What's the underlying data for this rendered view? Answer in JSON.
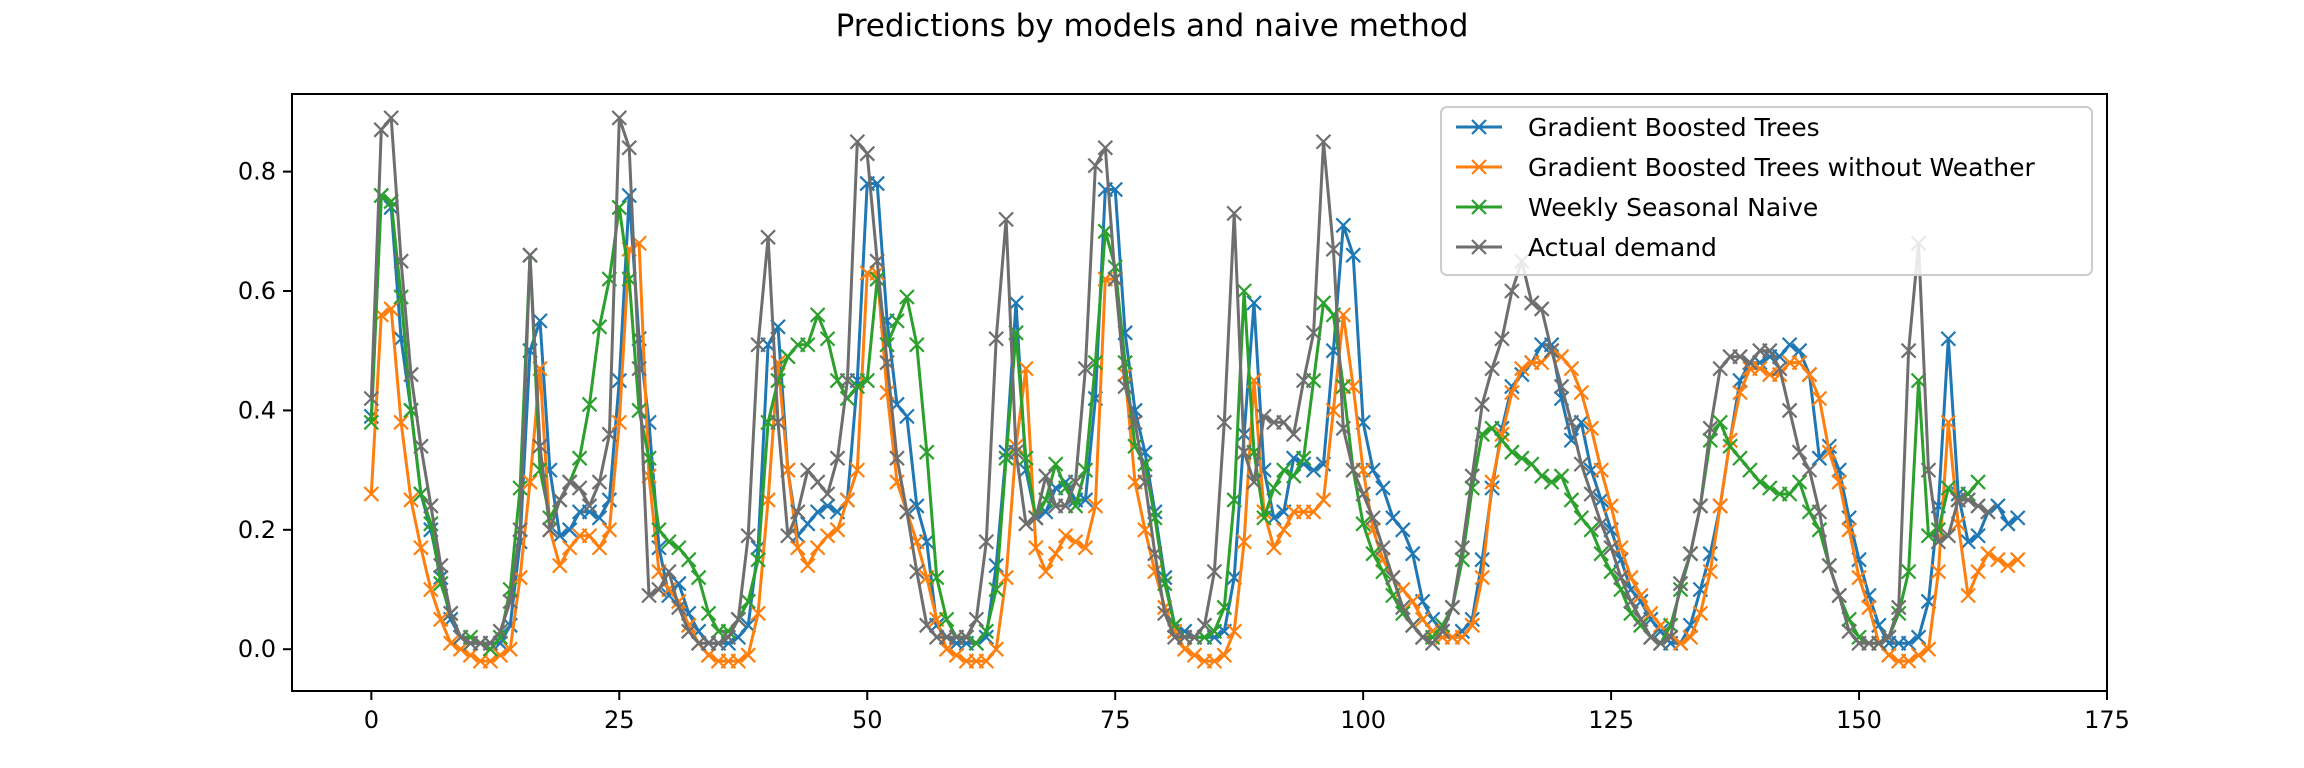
{
  "chart_data": {
    "type": "line",
    "title": "Predictions by models and naive method",
    "xlabel": "",
    "ylabel": "",
    "xlim": [
      -8,
      175
    ],
    "ylim": [
      -0.07,
      0.93
    ],
    "xticks": [
      0,
      25,
      50,
      75,
      100,
      125,
      150,
      175
    ],
    "xtick_labels": [
      "0",
      "25",
      "50",
      "75",
      "100",
      "125",
      "150",
      "175"
    ],
    "yticks": [
      0.0,
      0.2,
      0.4,
      0.6,
      0.8
    ],
    "ytick_labels": [
      "0.0",
      "0.2",
      "0.4",
      "0.6",
      "0.8"
    ],
    "legend_position": "top-right",
    "grid": false,
    "series": [
      {
        "name": "Gradient Boosted Trees",
        "color": "#1f77b4",
        "values": [
          0.39,
          0.76,
          0.74,
          0.52,
          0.4,
          0.26,
          0.2,
          0.12,
          0.05,
          0.02,
          0.01,
          0.01,
          0.01,
          0.01,
          0.04,
          0.18,
          0.5,
          0.55,
          0.3,
          0.19,
          0.2,
          0.23,
          0.23,
          0.22,
          0.25,
          0.45,
          0.76,
          0.52,
          0.38,
          0.17,
          0.09,
          0.11,
          0.06,
          0.03,
          0.01,
          0.01,
          0.01,
          0.02,
          0.04,
          0.17,
          0.51,
          0.54,
          0.3,
          0.19,
          0.21,
          0.23,
          0.24,
          0.23,
          0.25,
          0.45,
          0.78,
          0.78,
          0.55,
          0.41,
          0.39,
          0.24,
          0.18,
          0.04,
          0.02,
          0.01,
          0.01,
          0.01,
          0.02,
          0.14,
          0.33,
          0.58,
          0.3,
          0.22,
          0.23,
          0.27,
          0.28,
          0.25,
          0.25,
          0.42,
          0.77,
          0.77,
          0.53,
          0.4,
          0.33,
          0.23,
          0.12,
          0.04,
          0.03,
          0.02,
          0.02,
          0.02,
          0.03,
          0.12,
          0.36,
          0.58,
          0.3,
          0.22,
          0.23,
          0.32,
          0.31,
          0.3,
          0.31,
          0.5,
          0.71,
          0.66,
          0.38,
          0.3,
          0.27,
          0.22,
          0.2,
          0.16,
          0.08,
          0.05,
          0.03,
          0.02,
          0.03,
          0.05,
          0.15,
          0.27,
          0.37,
          0.44,
          0.46,
          0.48,
          0.51,
          0.51,
          0.42,
          0.35,
          0.38,
          0.3,
          0.25,
          0.2,
          0.15,
          0.1,
          0.08,
          0.05,
          0.03,
          0.01,
          0.01,
          0.04,
          0.1,
          0.16,
          0.24,
          0.35,
          0.45,
          0.48,
          0.48,
          0.49,
          0.49,
          0.51,
          0.5,
          0.46,
          0.32,
          0.34,
          0.3,
          0.22,
          0.15,
          0.09,
          0.04,
          0.01,
          0.01,
          0.01,
          0.02,
          0.08,
          0.24,
          0.52,
          0.26,
          0.18,
          0.19,
          0.23,
          0.24,
          0.21,
          0.22
        ]
      },
      {
        "name": "Gradient Boosted Trees without Weather",
        "color": "#ff7f0e",
        "values": [
          0.26,
          0.56,
          0.57,
          0.38,
          0.25,
          0.17,
          0.1,
          0.05,
          0.01,
          0.0,
          -0.01,
          -0.02,
          -0.02,
          -0.01,
          0.0,
          0.12,
          0.28,
          0.47,
          0.2,
          0.14,
          0.17,
          0.19,
          0.19,
          0.17,
          0.2,
          0.38,
          0.67,
          0.68,
          0.29,
          0.13,
          0.1,
          0.08,
          0.04,
          0.01,
          -0.01,
          -0.02,
          -0.02,
          -0.02,
          -0.01,
          0.06,
          0.25,
          0.48,
          0.3,
          0.17,
          0.14,
          0.17,
          0.19,
          0.2,
          0.25,
          0.3,
          0.63,
          0.63,
          0.43,
          0.28,
          0.23,
          0.18,
          0.12,
          0.05,
          0.0,
          -0.01,
          -0.02,
          -0.02,
          -0.02,
          0.0,
          0.12,
          0.34,
          0.47,
          0.17,
          0.13,
          0.16,
          0.19,
          0.18,
          0.17,
          0.24,
          0.62,
          0.62,
          0.46,
          0.28,
          0.2,
          0.13,
          0.07,
          0.03,
          0.0,
          -0.01,
          -0.02,
          -0.02,
          -0.01,
          0.03,
          0.18,
          0.45,
          0.23,
          0.17,
          0.2,
          0.23,
          0.23,
          0.23,
          0.25,
          0.4,
          0.56,
          0.44,
          0.3,
          0.2,
          0.15,
          0.12,
          0.1,
          0.08,
          0.05,
          0.03,
          0.02,
          0.02,
          0.02,
          0.04,
          0.12,
          0.28,
          0.36,
          0.43,
          0.47,
          0.48,
          0.48,
          0.5,
          0.49,
          0.47,
          0.43,
          0.37,
          0.3,
          0.24,
          0.17,
          0.12,
          0.09,
          0.06,
          0.04,
          0.02,
          0.01,
          0.02,
          0.06,
          0.13,
          0.24,
          0.35,
          0.43,
          0.47,
          0.47,
          0.46,
          0.46,
          0.48,
          0.48,
          0.46,
          0.42,
          0.33,
          0.28,
          0.2,
          0.12,
          0.07,
          0.01,
          -0.01,
          -0.02,
          -0.02,
          -0.01,
          0.0,
          0.13,
          0.38,
          0.21,
          0.09,
          0.13,
          0.16,
          0.15,
          0.14,
          0.15
        ]
      },
      {
        "name": "Weekly Seasonal Naive",
        "color": "#2ca02c",
        "values": [
          0.38,
          0.76,
          0.75,
          0.59,
          0.4,
          0.26,
          0.21,
          0.11,
          0.06,
          0.02,
          0.02,
          0.01,
          0.0,
          0.02,
          0.1,
          0.27,
          0.66,
          0.3,
          0.22,
          0.25,
          0.28,
          0.32,
          0.41,
          0.54,
          0.62,
          0.74,
          0.62,
          0.4,
          0.32,
          0.2,
          0.18,
          0.17,
          0.15,
          0.12,
          0.06,
          0.03,
          0.03,
          0.05,
          0.08,
          0.15,
          0.38,
          0.45,
          0.49,
          0.51,
          0.51,
          0.56,
          0.52,
          0.45,
          0.42,
          0.44,
          0.45,
          0.62,
          0.51,
          0.55,
          0.59,
          0.51,
          0.33,
          0.12,
          0.05,
          0.02,
          0.02,
          0.01,
          0.03,
          0.1,
          0.32,
          0.53,
          0.32,
          0.22,
          0.25,
          0.31,
          0.27,
          0.24,
          0.3,
          0.48,
          0.7,
          0.64,
          0.48,
          0.34,
          0.31,
          0.22,
          0.11,
          0.04,
          0.02,
          0.02,
          0.02,
          0.03,
          0.07,
          0.25,
          0.6,
          0.33,
          0.22,
          0.27,
          0.3,
          0.29,
          0.32,
          0.45,
          0.58,
          0.56,
          0.44,
          0.3,
          0.21,
          0.16,
          0.13,
          0.09,
          0.06,
          0.04,
          0.02,
          0.02,
          0.04,
          0.07,
          0.15,
          0.27,
          0.36,
          0.37,
          0.35,
          0.33,
          0.32,
          0.31,
          0.29,
          0.28,
          0.29,
          0.25,
          0.22,
          0.2,
          0.16,
          0.13,
          0.1,
          0.06,
          0.04,
          0.02,
          0.01,
          0.04,
          0.1,
          0.16,
          0.24,
          0.35,
          0.38,
          0.34,
          0.32,
          0.3,
          0.28,
          0.27,
          0.26,
          0.26,
          0.28,
          0.23,
          0.2,
          0.14,
          0.09,
          0.05,
          0.02,
          0.01,
          0.01,
          0.02,
          0.06,
          0.13,
          0.45,
          0.19,
          0.2,
          0.27,
          0.25,
          0.26,
          0.28
        ]
      },
      {
        "name": "Actual demand",
        "color": "#6e6e6e",
        "values": [
          0.42,
          0.87,
          0.89,
          0.65,
          0.46,
          0.34,
          0.24,
          0.14,
          0.06,
          0.02,
          0.01,
          0.01,
          0.01,
          0.03,
          0.08,
          0.2,
          0.66,
          0.34,
          0.2,
          0.25,
          0.28,
          0.27,
          0.24,
          0.28,
          0.36,
          0.89,
          0.84,
          0.47,
          0.09,
          0.1,
          0.13,
          0.07,
          0.03,
          0.01,
          0.01,
          0.01,
          0.02,
          0.05,
          0.19,
          0.51,
          0.69,
          0.38,
          0.19,
          0.23,
          0.3,
          0.28,
          0.26,
          0.32,
          0.45,
          0.85,
          0.83,
          0.65,
          0.48,
          0.32,
          0.23,
          0.13,
          0.04,
          0.02,
          0.02,
          0.02,
          0.02,
          0.05,
          0.18,
          0.52,
          0.72,
          0.33,
          0.21,
          0.22,
          0.29,
          0.24,
          0.24,
          0.28,
          0.47,
          0.81,
          0.84,
          0.62,
          0.44,
          0.38,
          0.28,
          0.16,
          0.06,
          0.02,
          0.02,
          0.02,
          0.04,
          0.13,
          0.38,
          0.73,
          0.33,
          0.28,
          0.39,
          0.38,
          0.38,
          0.36,
          0.45,
          0.53,
          0.85,
          0.67,
          0.37,
          0.3,
          0.26,
          0.22,
          0.17,
          0.12,
          0.07,
          0.04,
          0.02,
          0.01,
          0.03,
          0.07,
          0.17,
          0.29,
          0.41,
          0.47,
          0.52,
          0.6,
          0.65,
          0.58,
          0.57,
          0.5,
          0.44,
          0.38,
          0.31,
          0.26,
          0.21,
          0.17,
          0.12,
          0.08,
          0.05,
          0.02,
          0.01,
          0.02,
          0.11,
          0.16,
          0.24,
          0.37,
          0.47,
          0.49,
          0.49,
          0.48,
          0.5,
          0.5,
          0.47,
          0.4,
          0.33,
          0.3,
          0.23,
          0.14,
          0.09,
          0.03,
          0.01,
          0.01,
          0.01,
          0.02,
          0.07,
          0.5,
          0.68,
          0.3,
          0.18,
          0.19,
          0.25,
          0.25,
          0.24,
          0.23
        ]
      }
    ]
  }
}
